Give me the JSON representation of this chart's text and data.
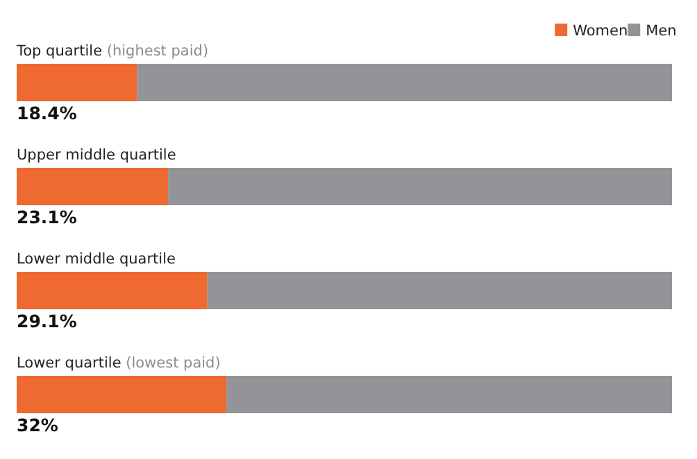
{
  "chart_data": {
    "type": "bar",
    "orientation": "horizontal",
    "stacked": true,
    "categories": [
      "Top quartile (highest paid)",
      "Upper middle quartile",
      "Lower middle quartile",
      "Lower quartile (lowest paid)"
    ],
    "series": [
      {
        "name": "Women",
        "color": "#ee6a31",
        "values": [
          18.4,
          23.1,
          29.1,
          32
        ],
        "value_labels": [
          "18.4%",
          "23.1%",
          "29.1%",
          "32%"
        ]
      },
      {
        "name": "Men",
        "color": "#929497",
        "values": [
          81.6,
          76.9,
          70.9,
          68
        ]
      }
    ],
    "legend": "top right"
  }
}
